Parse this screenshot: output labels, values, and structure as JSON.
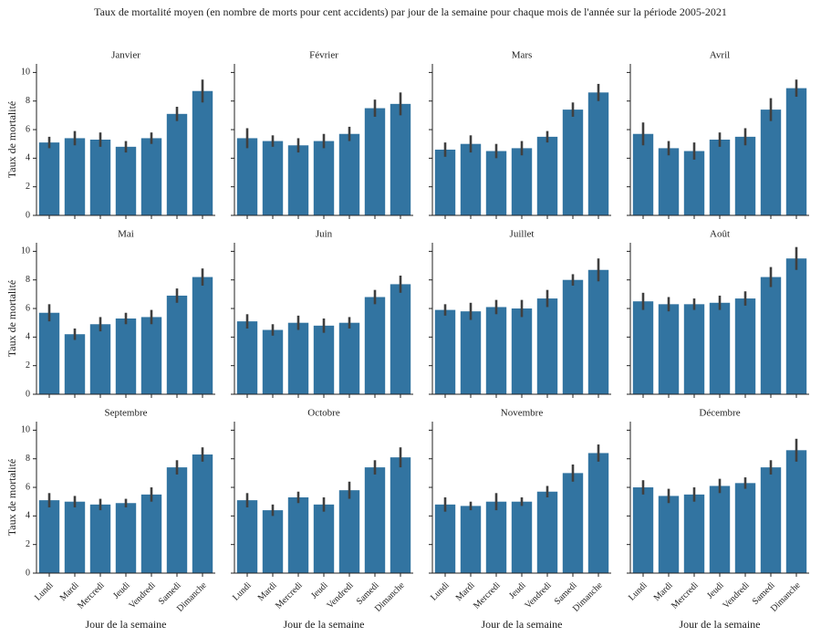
{
  "title": "Taux de mortalité moyen (en nombre de morts pour cent accidents) par jour de la semaine pour chaque mois de l'année sur la période 2005-2021",
  "shared": {
    "categories": [
      "Lundi",
      "Mardi",
      "Mercredi",
      "Jeudi",
      "Vendredi",
      "Samedi",
      "Dimanche"
    ],
    "xlabel": "Jour de la semaine",
    "ylabel": "Taux de mortalité",
    "ylim": [
      0,
      10.6
    ],
    "yticks": [
      0,
      2,
      4,
      6,
      8,
      10
    ],
    "color": "#3274a1",
    "error_color": "#3f3f3f"
  },
  "chart_data": [
    {
      "type": "bar",
      "title": "Janvier",
      "values": [
        5.1,
        5.4,
        5.3,
        4.8,
        5.4,
        7.1,
        8.7
      ],
      "errors": [
        0.4,
        0.5,
        0.5,
        0.4,
        0.4,
        0.5,
        0.8
      ]
    },
    {
      "type": "bar",
      "title": "Février",
      "values": [
        5.4,
        5.2,
        4.9,
        5.2,
        5.7,
        7.5,
        7.8
      ],
      "errors": [
        0.7,
        0.4,
        0.5,
        0.5,
        0.5,
        0.6,
        0.8
      ]
    },
    {
      "type": "bar",
      "title": "Mars",
      "values": [
        4.6,
        5.0,
        4.5,
        4.7,
        5.5,
        7.4,
        8.6
      ],
      "errors": [
        0.5,
        0.6,
        0.5,
        0.5,
        0.4,
        0.5,
        0.6
      ]
    },
    {
      "type": "bar",
      "title": "Avril",
      "values": [
        5.7,
        4.7,
        4.5,
        5.3,
        5.5,
        7.4,
        8.9
      ],
      "errors": [
        0.8,
        0.5,
        0.6,
        0.5,
        0.6,
        0.8,
        0.6
      ]
    },
    {
      "type": "bar",
      "title": "Mai",
      "values": [
        5.7,
        4.2,
        4.9,
        5.3,
        5.4,
        6.9,
        8.2
      ],
      "errors": [
        0.6,
        0.4,
        0.5,
        0.4,
        0.5,
        0.5,
        0.6
      ]
    },
    {
      "type": "bar",
      "title": "Juin",
      "values": [
        5.1,
        4.5,
        5.0,
        4.8,
        5.0,
        6.8,
        7.7
      ],
      "errors": [
        0.5,
        0.4,
        0.5,
        0.5,
        0.4,
        0.5,
        0.6
      ]
    },
    {
      "type": "bar",
      "title": "Juillet",
      "values": [
        5.9,
        5.8,
        6.1,
        6.0,
        6.7,
        8.0,
        8.7
      ],
      "errors": [
        0.4,
        0.6,
        0.5,
        0.6,
        0.6,
        0.4,
        0.8
      ]
    },
    {
      "type": "bar",
      "title": "Août",
      "values": [
        6.5,
        6.3,
        6.3,
        6.4,
        6.7,
        8.2,
        9.5
      ],
      "errors": [
        0.6,
        0.5,
        0.4,
        0.5,
        0.5,
        0.7,
        0.8
      ]
    },
    {
      "type": "bar",
      "title": "Septembre",
      "values": [
        5.1,
        5.0,
        4.8,
        4.9,
        5.5,
        7.4,
        8.3
      ],
      "errors": [
        0.5,
        0.4,
        0.4,
        0.3,
        0.5,
        0.5,
        0.5
      ]
    },
    {
      "type": "bar",
      "title": "Octobre",
      "values": [
        5.1,
        4.4,
        5.3,
        4.8,
        5.8,
        7.4,
        8.1
      ],
      "errors": [
        0.5,
        0.4,
        0.4,
        0.5,
        0.6,
        0.5,
        0.7
      ]
    },
    {
      "type": "bar",
      "title": "Novembre",
      "values": [
        4.8,
        4.7,
        5.0,
        5.0,
        5.7,
        7.0,
        8.4
      ],
      "errors": [
        0.5,
        0.3,
        0.6,
        0.3,
        0.4,
        0.6,
        0.6
      ]
    },
    {
      "type": "bar",
      "title": "Décembre",
      "values": [
        6.0,
        5.4,
        5.5,
        6.1,
        6.3,
        7.4,
        8.6
      ],
      "errors": [
        0.5,
        0.5,
        0.5,
        0.5,
        0.4,
        0.5,
        0.8
      ]
    }
  ]
}
